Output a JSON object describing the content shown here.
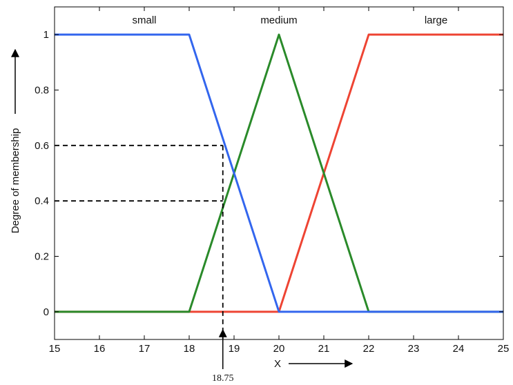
{
  "chart_data": {
    "type": "line",
    "title": "",
    "xlabel": "X",
    "ylabel": "Degree of membership",
    "xlim": [
      15,
      25
    ],
    "ylim": [
      -0.1,
      1.1
    ],
    "grid": false,
    "legend": "none",
    "x_ticks": [
      15,
      16,
      17,
      18,
      19,
      20,
      21,
      22,
      23,
      24,
      25
    ],
    "y_ticks": [
      0,
      0.2,
      0.4,
      0.6,
      0.8,
      1
    ],
    "y_tick_labels": [
      "0",
      "0.2",
      "0.4",
      "0.6",
      "0.8",
      "1"
    ],
    "series": [
      {
        "name": "small",
        "color": "#3366ee",
        "x": [
          15,
          18,
          20,
          25
        ],
        "y": [
          1,
          1,
          0,
          0
        ]
      },
      {
        "name": "medium",
        "color": "#2a8a2a",
        "x": [
          15,
          18,
          20,
          22,
          25
        ],
        "y": [
          0,
          0,
          1,
          0,
          0
        ]
      },
      {
        "name": "large",
        "color": "#ee4433",
        "x": [
          15,
          20,
          22,
          25
        ],
        "y": [
          0,
          0,
          1,
          1
        ]
      }
    ],
    "series_label_x": [
      17,
      20,
      23.5
    ],
    "annotations": {
      "x_value": 18.75,
      "x_value_label": "18.75",
      "reference_levels": [
        0.6,
        0.4
      ]
    }
  }
}
